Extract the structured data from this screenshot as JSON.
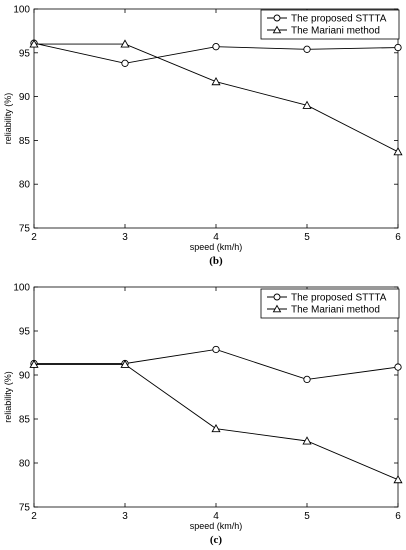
{
  "chart_data": [
    {
      "type": "line",
      "panel_label": "(b)",
      "xlabel": "speed (km/h)",
      "ylabel": "reliability (%)",
      "x": [
        2,
        3,
        4,
        5,
        6
      ],
      "xlim": [
        2,
        6
      ],
      "ylim": [
        75,
        100
      ],
      "xticks": [
        "2",
        "3",
        "4",
        "5",
        "6"
      ],
      "yticks": [
        "75",
        "80",
        "85",
        "90",
        "95",
        "100"
      ],
      "grid": false,
      "legend_position": "top-right",
      "series": [
        {
          "name": "The proposed STTTA",
          "marker": "circle",
          "values": [
            96.1,
            93.8,
            95.7,
            95.4,
            95.6
          ]
        },
        {
          "name": "The Mariani method",
          "marker": "triangle",
          "values": [
            96.0,
            96.0,
            91.7,
            89.0,
            83.7
          ]
        }
      ]
    },
    {
      "type": "line",
      "panel_label": "(c)",
      "xlabel": "speed (km/h)",
      "ylabel": "reliability (%)",
      "x": [
        2,
        3,
        4,
        5,
        6
      ],
      "xlim": [
        2,
        6
      ],
      "ylim": [
        75,
        100
      ],
      "xticks": [
        "2",
        "3",
        "4",
        "5",
        "6"
      ],
      "yticks": [
        "75",
        "80",
        "85",
        "90",
        "95",
        "100"
      ],
      "grid": false,
      "legend_position": "top-right",
      "series": [
        {
          "name": "The proposed STTTA",
          "marker": "circle",
          "values": [
            91.3,
            91.3,
            92.9,
            89.5,
            90.9
          ]
        },
        {
          "name": "The Mariani method",
          "marker": "triangle",
          "values": [
            91.2,
            91.2,
            83.9,
            82.5,
            78.1
          ]
        }
      ]
    }
  ]
}
